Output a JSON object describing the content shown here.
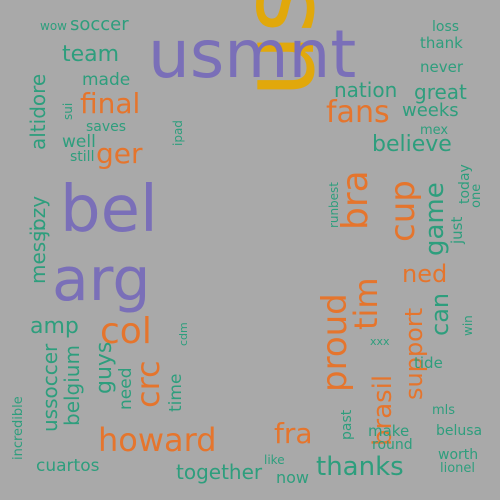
{
  "palette": {
    "background": "#a9a9a9",
    "purple": "#7a6fb8",
    "orange": "#e5752d",
    "gold": "#e1a80b",
    "teal": "#2e9e7d"
  },
  "words": {
    "usa": "usa",
    "usmnt": "usmnt",
    "bel": "bel",
    "arg": "arg",
    "final": "final",
    "ger": "ger",
    "fans": "fans",
    "bra": "bra",
    "proud": "proud",
    "cup": "cup",
    "tim": "tim",
    "col": "col",
    "crc": "crc",
    "howard": "howard",
    "fra": "fra",
    "thanks": "thanks",
    "brasil": "brasil",
    "support": "support",
    "game": "game",
    "ned": "ned",
    "can": "can",
    "believe": "believe",
    "nation": "nation",
    "great": "great",
    "weeks": "weeks",
    "mex": "mex",
    "team": "team",
    "made": "made",
    "saves": "saves",
    "well": "well",
    "still": "still",
    "sui": "sui",
    "ipad": "ipad",
    "soccer": "soccer",
    "wow": "wow",
    "altidore": "altidore",
    "jozy": "jozy",
    "messi": "messi",
    "amp": "amp",
    "ussoccer": "ussoccer",
    "belgium": "belgium",
    "guys": "guys",
    "need": "need",
    "time": "time",
    "cdm": "cdm",
    "incredible": "incredible",
    "cuartos": "cuartos",
    "together": "together",
    "like": "like",
    "now": "now",
    "loss": "loss",
    "thank": "thank",
    "never": "never",
    "today": "today",
    "one": "one",
    "just": "just",
    "win": "win",
    "tide": "tide",
    "mls": "mls",
    "belusa": "belusa",
    "worth": "worth",
    "lionel": "lionel",
    "make": "make",
    "round": "round",
    "past": "past",
    "xxx": "xxx",
    "best": "best",
    "run": "run"
  }
}
